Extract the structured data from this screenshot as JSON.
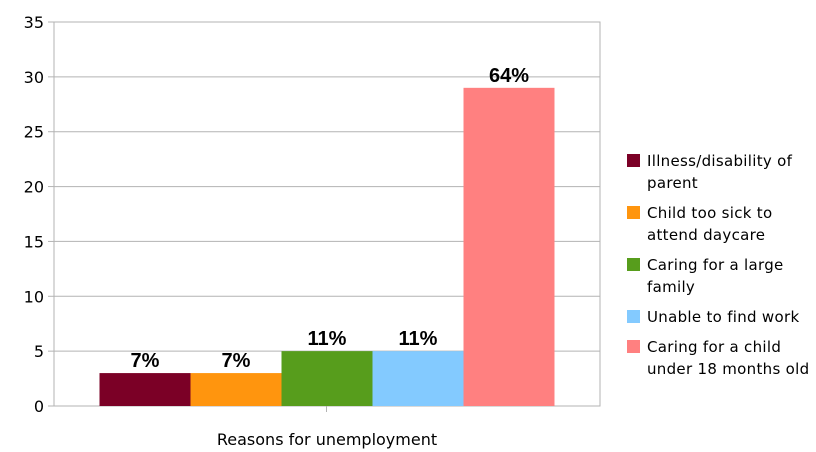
{
  "chart_data": {
    "type": "bar",
    "xlabel": "Reasons for unemployment",
    "ylabel": "",
    "ylim": [
      0,
      35
    ],
    "yticks": [
      0,
      5,
      10,
      15,
      20,
      25,
      30,
      35
    ],
    "grid": true,
    "legend_position": "right",
    "series": [
      {
        "name": "Illness/disability of parent",
        "value": 3,
        "label": "7%",
        "color": "#7b0026"
      },
      {
        "name": "Child too sick to attend daycare",
        "value": 3,
        "label": "7%",
        "color": "#ff950e"
      },
      {
        "name": "Caring for a large family",
        "value": 5,
        "label": "11%",
        "color": "#579d1c"
      },
      {
        "name": "Unable to find work",
        "value": 5,
        "label": "11%",
        "color": "#83caff"
      },
      {
        "name": "Caring for a child under 18 months old",
        "value": 29,
        "label": "64%",
        "color": "#ff8080"
      }
    ]
  }
}
